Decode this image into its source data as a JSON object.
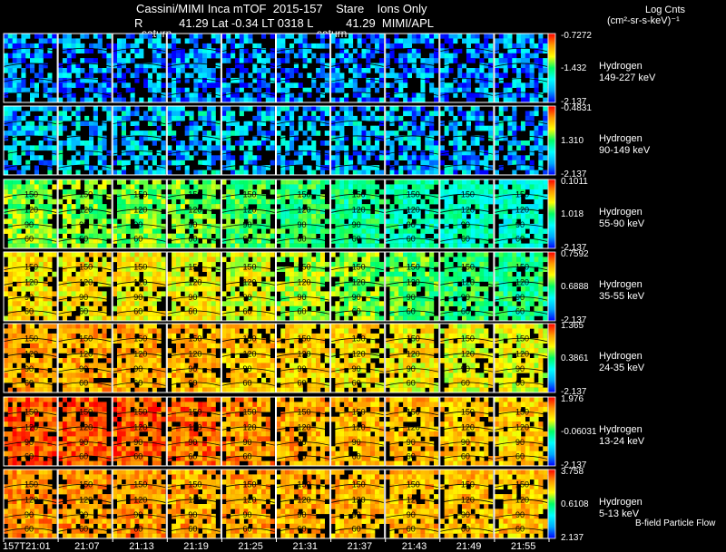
{
  "header": {
    "title": "Cassini/MIMI Inca mTOF  2015-157    Stare    Ions Only",
    "subtitle": "R           41.29 Lat -0.34 LT 0318 L          41.29  MIMI/APL",
    "saturn_labels": [
      "saturn",
      "saturn"
    ],
    "units_title": "Log Cnts",
    "units": "(cm²-sr-s-keV)⁻¹"
  },
  "footer": {
    "bfield_label": "B-field Particle Flow",
    "time_labels": [
      "157T21:01",
      "21:07",
      "21:13",
      "21:19",
      "21:25",
      "21:31",
      "21:37",
      "21:43",
      "21:49",
      "21:55"
    ]
  },
  "chart_data": {
    "type": "heatmap",
    "title": "Cassini/MIMI Inca mTOF  2015-157    Stare    Ions Only",
    "time_labels": [
      "157T21:01",
      "21:07",
      "21:13",
      "21:19",
      "21:25",
      "21:31",
      "21:37",
      "21:43",
      "21:49",
      "21:55"
    ],
    "contour_labels": [
      "150",
      "120",
      "90",
      "60"
    ],
    "colorbar": {
      "colors": [
        "#0000ff",
        "#00aaff",
        "#00ffff",
        "#00ff66",
        "#ffff00",
        "#ff9900",
        "#ff0000"
      ]
    },
    "rows": [
      {
        "species": "Hydrogen",
        "energy": "149-227 keV",
        "cb_max": "-0.7272",
        "cb_mid": "-1.432",
        "cb_min": "-2.137",
        "level": [
          0.15,
          0.15,
          0.15,
          0.15,
          0.15,
          0.15,
          0.15,
          0.15,
          0.15,
          0.15
        ]
      },
      {
        "species": "Hydrogen",
        "energy": "90-149 keV",
        "cb_max": "-0.4831",
        "cb_mid": "1.310",
        "cb_min": "-2.137",
        "level": [
          0.25,
          0.25,
          0.24,
          0.24,
          0.23,
          0.22,
          0.22,
          0.21,
          0.2,
          0.2
        ]
      },
      {
        "species": "Hydrogen",
        "energy": "55-90 keV",
        "cb_max": "0.1011",
        "cb_mid": "1.018",
        "cb_min": "-2.137",
        "level": [
          0.58,
          0.58,
          0.57,
          0.56,
          0.53,
          0.5,
          0.45,
          0.42,
          0.4,
          0.38
        ]
      },
      {
        "species": "Hydrogen",
        "energy": "35-55 keV",
        "cb_max": "0.7592",
        "cb_mid": "0.6888",
        "cb_min": "-2.137",
        "level": [
          0.72,
          0.71,
          0.7,
          0.69,
          0.66,
          0.62,
          0.58,
          0.54,
          0.5,
          0.47
        ]
      },
      {
        "species": "Hydrogen",
        "energy": "24-35 keV",
        "cb_max": "1.365",
        "cb_mid": "0.3861",
        "cb_min": "-2.137",
        "level": [
          0.8,
          0.8,
          0.79,
          0.78,
          0.76,
          0.74,
          0.72,
          0.7,
          0.68,
          0.67
        ]
      },
      {
        "species": "Hydrogen",
        "energy": "13-24 keV",
        "cb_max": "1.976",
        "cb_mid": "-0.06031",
        "cb_min": "-2.137",
        "level": [
          0.9,
          0.9,
          0.9,
          0.88,
          0.83,
          0.8,
          0.78,
          0.77,
          0.76,
          0.75
        ]
      },
      {
        "species": "Hydrogen",
        "energy": "5-13 keV",
        "cb_max": "3.758",
        "cb_mid": "0.6108",
        "cb_min": "2.137",
        "level": [
          0.82,
          0.82,
          0.82,
          0.8,
          0.8,
          0.79,
          0.78,
          0.78,
          0.77,
          0.76
        ]
      }
    ]
  }
}
